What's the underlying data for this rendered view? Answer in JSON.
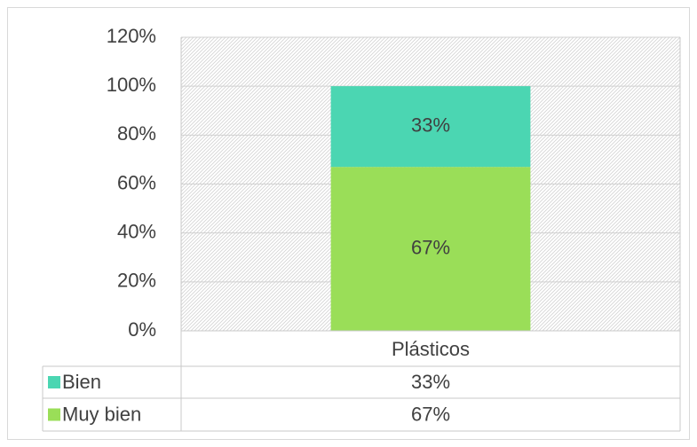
{
  "chart_data": {
    "type": "stacked_bar",
    "categories": [
      "Plásticos"
    ],
    "series": [
      {
        "name": "Muy bien",
        "color": "#9ade58",
        "values": [
          67
        ],
        "value_labels": [
          "67%"
        ]
      },
      {
        "name": "Bien",
        "color": "#4bd6b2",
        "values": [
          33
        ],
        "value_labels": [
          "33%"
        ]
      }
    ],
    "ylim": [
      0,
      120
    ],
    "yticks": [
      {
        "value": 0,
        "label": "0%"
      },
      {
        "value": 20,
        "label": "20%"
      },
      {
        "value": 40,
        "label": "40%"
      },
      {
        "value": 60,
        "label": "60%"
      },
      {
        "value": 80,
        "label": "80%"
      },
      {
        "value": 100,
        "label": "100%"
      },
      {
        "value": 120,
        "label": "120%"
      }
    ],
    "grid": true,
    "data_table": true
  }
}
